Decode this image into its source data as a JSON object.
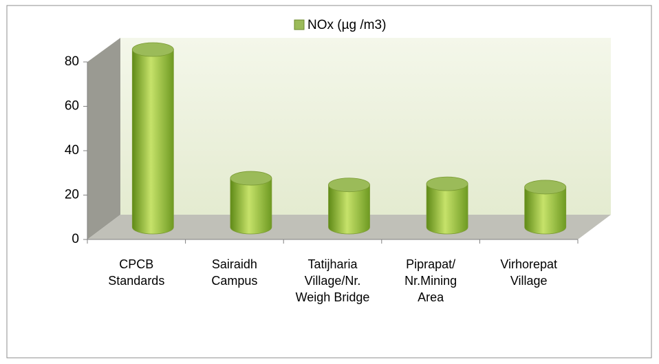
{
  "chart_data": {
    "type": "bar3d",
    "categories": [
      "CPCB Standards",
      "Sairaidh Campus",
      "Tatijharia Village/Nr. Weigh Bridge",
      "Piprapat/ Nr.Mining Area",
      "Virhorepat Village"
    ],
    "series": [
      {
        "name": "NOx (µg /m3)",
        "color": "#9bbb59",
        "values": [
          80,
          22,
          19,
          19.5,
          18
        ]
      }
    ],
    "ylim": [
      0,
      80
    ],
    "yticks": [
      0,
      20,
      40,
      60,
      80
    ],
    "legend": "top"
  }
}
